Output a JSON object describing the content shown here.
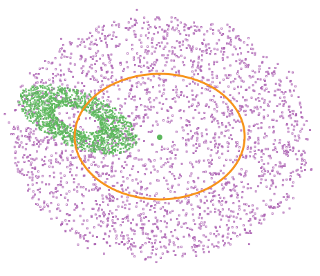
{
  "scene": {
    "subject": "particle-scatter-simulation",
    "colors": {
      "background": "#ffffff",
      "disk_particles": "#b06ab6",
      "ring_orbit": "#f7941d",
      "secondary_torus": "#5cb85c",
      "central_body": "#5cb85c",
      "central_gap": "#ffffff"
    },
    "layers": [
      "disk-particles",
      "secondary-torus",
      "orbit-ring",
      "central-body"
    ]
  }
}
